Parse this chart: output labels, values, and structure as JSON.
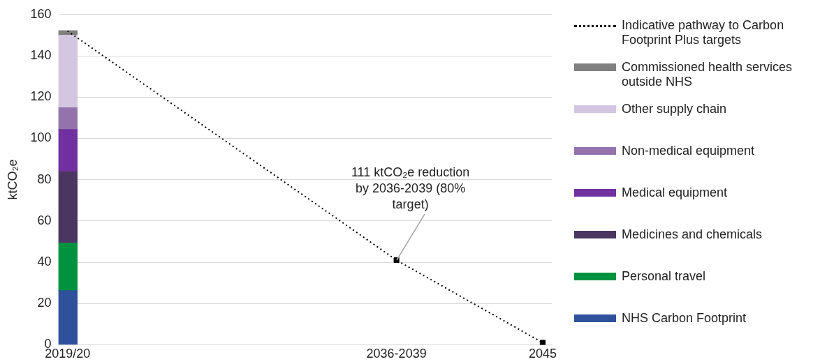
{
  "chart_data": {
    "type": "bar",
    "stacked": true,
    "ylabel": "ktCO₂e",
    "categories": [
      "2019/20",
      null,
      null,
      null,
      null,
      null,
      null,
      null,
      null,
      null,
      null,
      null,
      null,
      null,
      null,
      null,
      null,
      null,
      "2036-2039",
      null,
      null,
      null,
      null,
      null,
      null,
      null,
      "2045"
    ],
    "series": [
      {
        "name": "NHS Carbon Footprint",
        "color": "#2f519c",
        "values": [
          26.3,
          null,
          null,
          null,
          null,
          null,
          null,
          null,
          null,
          null,
          null,
          null,
          null,
          null,
          null,
          null,
          null,
          null,
          null,
          null,
          null,
          null,
          null,
          null,
          null,
          null,
          null
        ]
      },
      {
        "name": "Personal travel",
        "color": "#00923f",
        "values": [
          23,
          null,
          null,
          null,
          null,
          null,
          null,
          null,
          null,
          null,
          null,
          null,
          null,
          null,
          null,
          null,
          null,
          null,
          null,
          null,
          null,
          null,
          null,
          null,
          null,
          null,
          null
        ]
      },
      {
        "name": "Medicines and chemicals",
        "color": "#4a3660",
        "values": [
          34.5,
          null,
          null,
          null,
          null,
          null,
          null,
          null,
          null,
          null,
          null,
          null,
          null,
          null,
          null,
          null,
          null,
          null,
          null,
          null,
          null,
          null,
          null,
          null,
          null,
          null,
          null
        ]
      },
      {
        "name": "Medical equipment",
        "color": "#7030a0",
        "values": [
          20.5,
          null,
          null,
          null,
          null,
          null,
          null,
          null,
          null,
          null,
          null,
          null,
          null,
          null,
          null,
          null,
          null,
          null,
          null,
          null,
          null,
          null,
          null,
          null,
          null,
          null,
          null
        ]
      },
      {
        "name": "Non-medical equipment",
        "color": "#9473ad",
        "values": [
          10.6,
          null,
          null,
          null,
          null,
          null,
          null,
          null,
          null,
          null,
          null,
          null,
          null,
          null,
          null,
          null,
          null,
          null,
          null,
          null,
          null,
          null,
          null,
          null,
          null,
          null,
          null
        ]
      },
      {
        "name": "Other supply chain",
        "color": "#d3c6e0",
        "values": [
          35.1,
          null,
          null,
          null,
          null,
          null,
          null,
          null,
          null,
          null,
          null,
          null,
          null,
          null,
          null,
          null,
          null,
          null,
          null,
          null,
          null,
          null,
          null,
          null,
          null,
          null,
          null
        ]
      },
      {
        "name": "Commissioned health services outside NHS",
        "color": "#808080",
        "values": [
          2.2,
          null,
          null,
          null,
          null,
          null,
          null,
          null,
          null,
          null,
          null,
          null,
          null,
          null,
          null,
          null,
          null,
          null,
          null,
          null,
          null,
          null,
          null,
          null,
          null,
          null,
          null
        ]
      },
      {
        "name": "Indicative pathway to Carbon Footprint Plus targets",
        "type": "line",
        "line_style": "dotted",
        "marker": "none",
        "color": "#000000",
        "values": [
          152,
          null,
          null,
          null,
          null,
          null,
          null,
          null,
          null,
          null,
          null,
          null,
          null,
          null,
          null,
          null,
          null,
          null,
          41,
          null,
          null,
          null,
          null,
          null,
          null,
          null,
          1
        ]
      },
      {
        "type": "scatter",
        "marker": "square",
        "color": "#000000",
        "values": [
          null,
          null,
          null,
          null,
          null,
          null,
          null,
          null,
          null,
          null,
          null,
          null,
          null,
          null,
          null,
          null,
          null,
          null,
          41,
          null,
          null,
          null,
          null,
          null,
          null,
          null,
          1
        ]
      }
    ],
    "ylim": [
      0,
      160
    ],
    "yticks": [
      0,
      20,
      40,
      60,
      80,
      100,
      120,
      140,
      160
    ],
    "grid": "y",
    "legend": "right",
    "annotations": [
      {
        "text": "111 ktCO₂e reduction by 2036-2039 (80% target)",
        "x": "2036-2039",
        "y": 41
      }
    ]
  }
}
